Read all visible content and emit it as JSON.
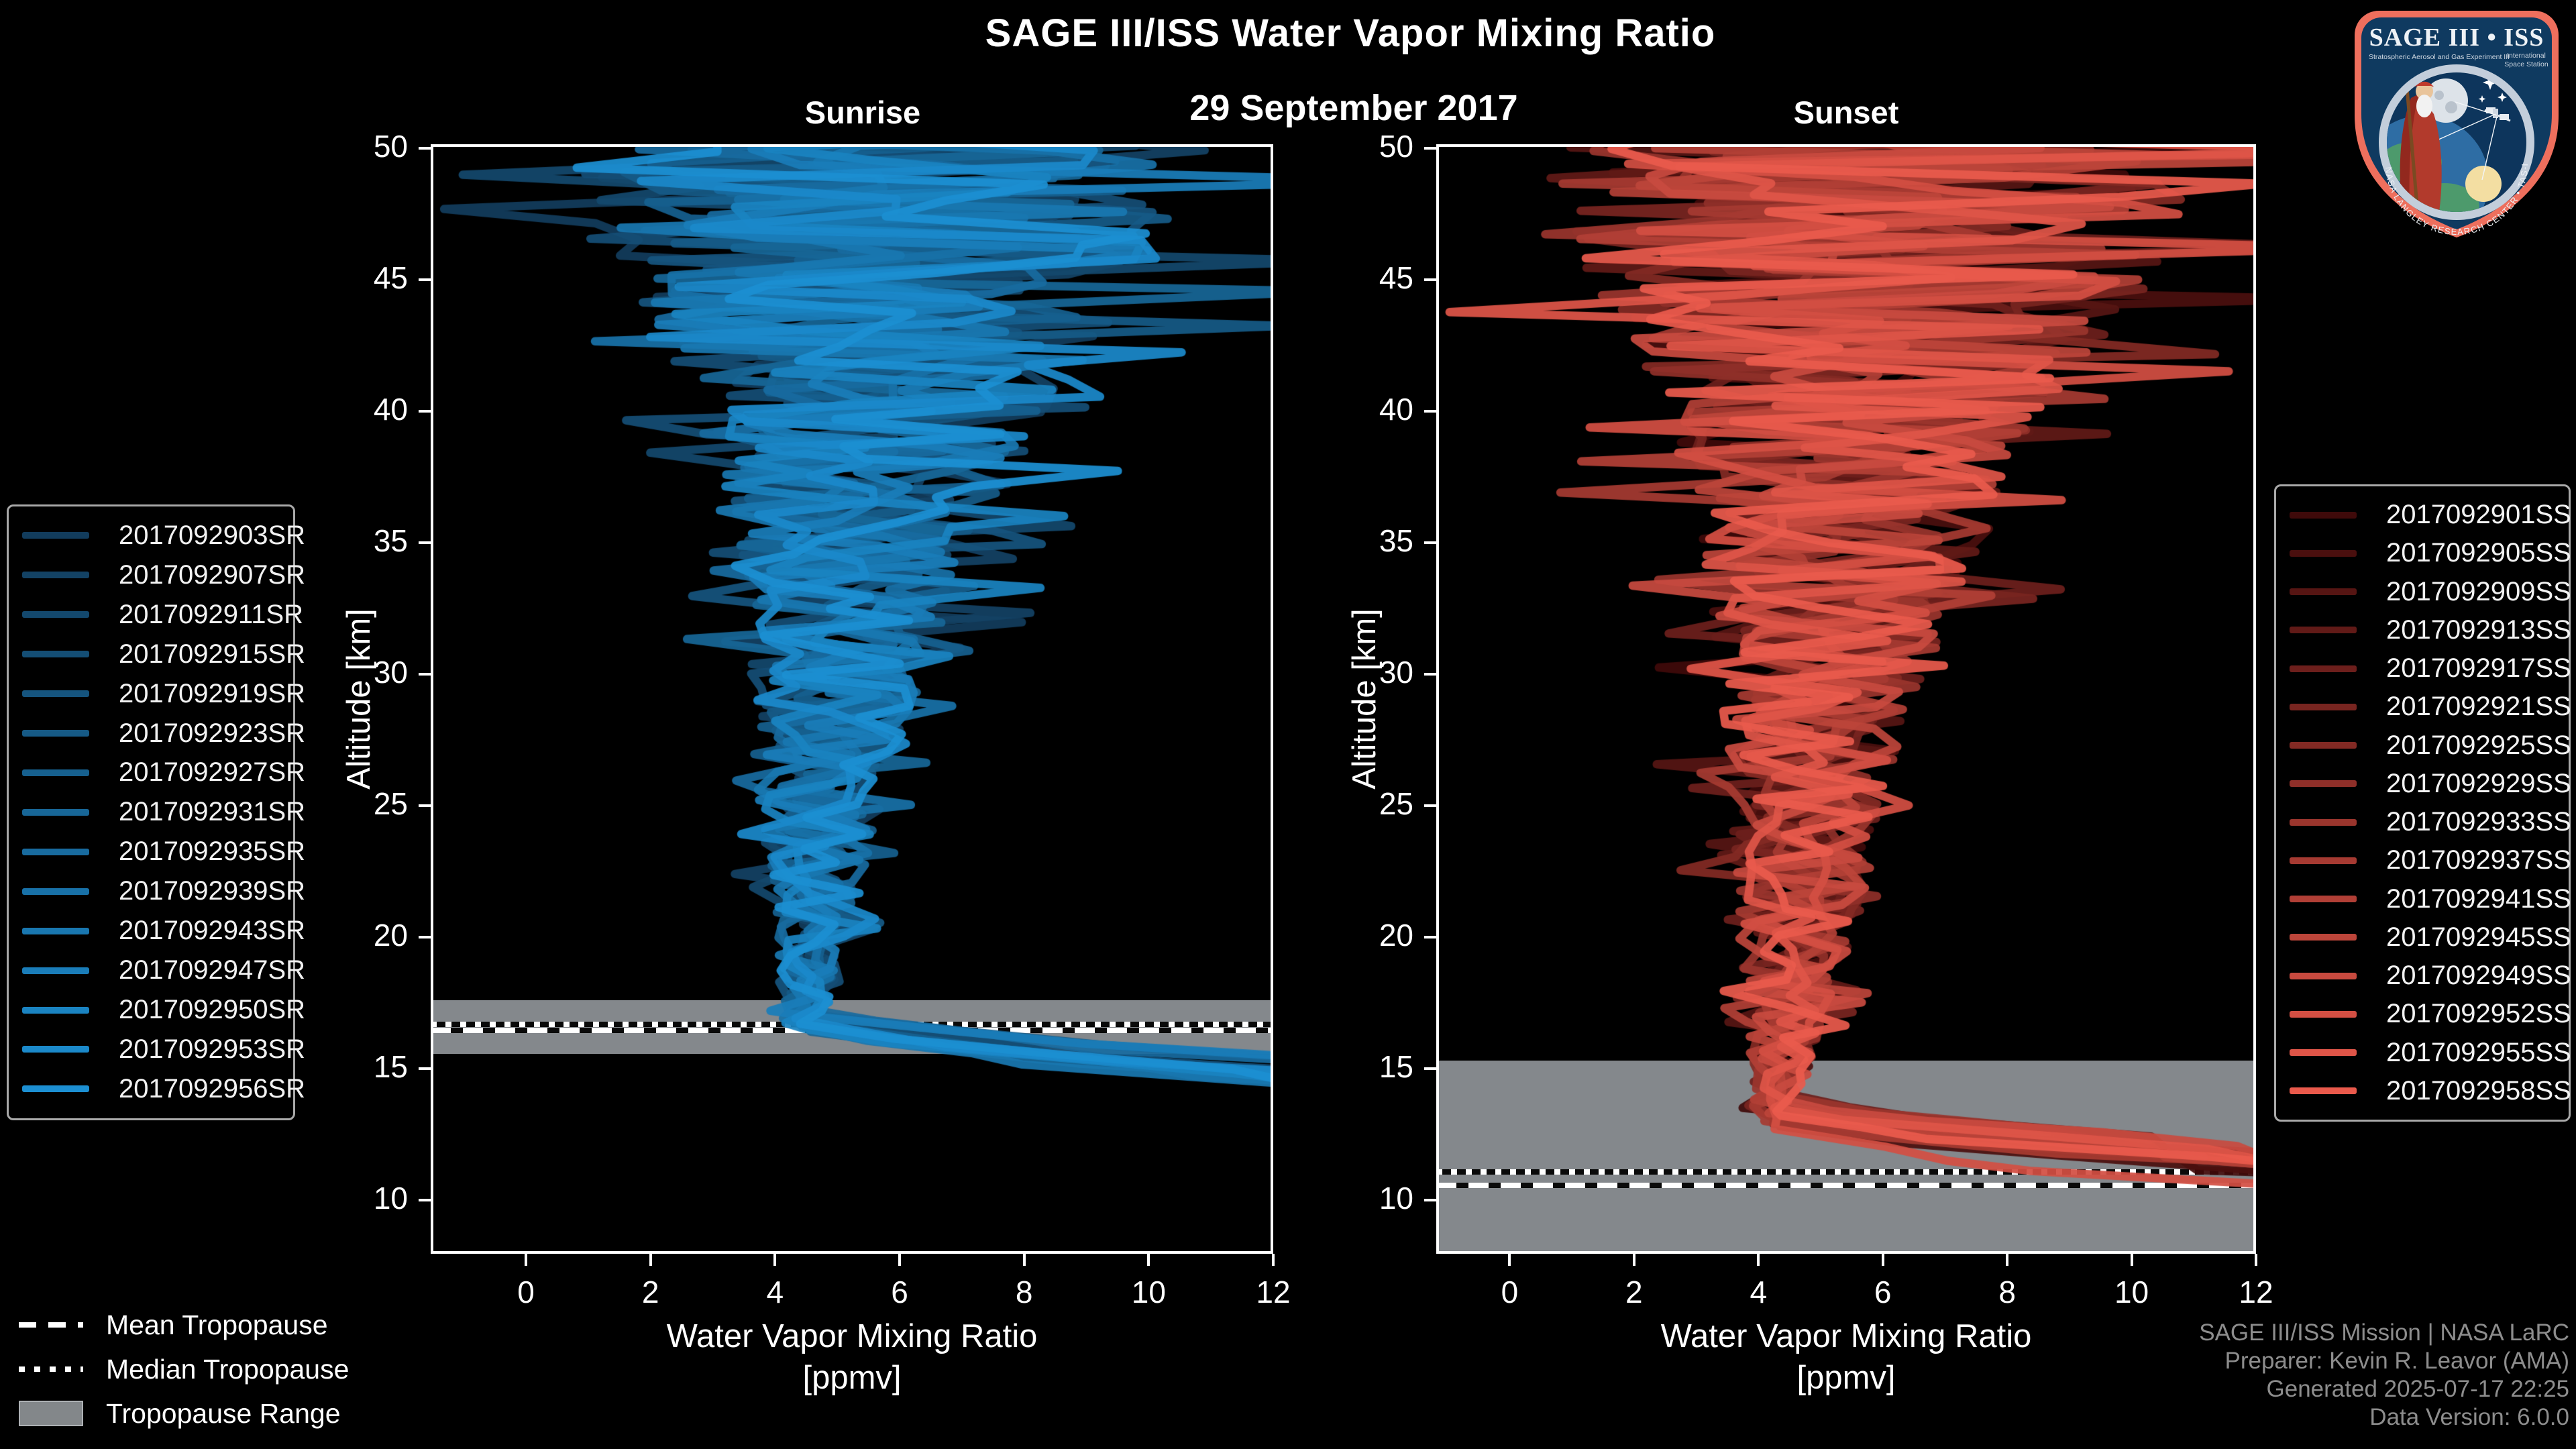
{
  "ui": {
    "title": "SAGE III/ISS Water Vapor Mixing Ratio",
    "date": "29 September 2017",
    "sunrise": "Sunrise",
    "sunset": "Sunset",
    "xlabel_line1": "Water Vapor Mixing Ratio",
    "xlabel_line2": "[ppmv]",
    "ylabel": "Altitude [km]",
    "colors": {
      "background": "#000000",
      "text": "#ffffff",
      "attribution_text": "#8d8d8d",
      "tropopause_band": "#84888c",
      "sunrise_dark": "#123c5c",
      "sunrise_bright": "#1c8fd2",
      "sunset_dark": "#3f0a0a",
      "sunset_bright": "#ea5a4c"
    },
    "tropo_legend": [
      {
        "style": "dashed",
        "label": "Mean Tropopause"
      },
      {
        "style": "dotted",
        "label": "Median Tropopause"
      },
      {
        "style": "range",
        "label": "Tropopause Range"
      }
    ],
    "attribution": [
      "SAGE III/ISS Mission | NASA LaRC",
      "Preparer: Kevin R. Leavor (AMA)",
      "Generated 2025-07-17 22:25",
      "Data Version: 6.0.0"
    ],
    "logo": {
      "title": "SAGE III • ISS",
      "sub1": "Stratospheric Aerosol and Gas Experiment III",
      "iss1": "International",
      "iss2": "Space Station",
      "ring": "BALL • NASA LANGLEY RESEARCH CENTER • TAS-I • ESA"
    }
  },
  "chart_data": [
    {
      "type": "line",
      "title": "Sunrise",
      "xlabel": "Water Vapor Mixing Ratio [ppmv]",
      "ylabel": "Altitude [km]",
      "xlim": [
        -1.53,
        12.0
      ],
      "ylim": [
        7.95,
        50.15
      ],
      "xticks": [
        0,
        2,
        4,
        6,
        8,
        10,
        12
      ],
      "yticks": [
        10,
        15,
        20,
        25,
        30,
        35,
        40,
        45,
        50
      ],
      "grid": false,
      "legend_position": "outside-left",
      "line_color_range": [
        "#123c5c",
        "#1c8fd2"
      ],
      "mean_profile": {
        "altitude_km": [
          16.5,
          18,
          20,
          25,
          30,
          35,
          40,
          45,
          50
        ],
        "ppmv": [
          4.45,
          4.5,
          4.6,
          4.75,
          4.95,
          5.2,
          5.6,
          5.75,
          5.6
        ]
      },
      "noise_amplitude_ppmv": {
        "altitude_km": [
          16,
          18,
          20,
          25,
          30,
          35,
          40,
          45,
          50
        ],
        "amp": [
          0.3,
          0.4,
          0.55,
          0.95,
          1.35,
          1.9,
          2.7,
          4.2,
          5.2
        ]
      },
      "tropopause": {
        "mean_km": 16.45,
        "median_km": 16.68,
        "range_km": [
          15.55,
          17.6
        ]
      },
      "series": [
        {
          "name": "2017092903SR",
          "color": "#123c5c",
          "seed": 101,
          "knee_km": 17.0,
          "bottom_km": 11.4,
          "rise": 2.6
        },
        {
          "name": "2017092907SR",
          "color": "#134264",
          "seed": 102,
          "knee_km": 16.6,
          "bottom_km": 14.6,
          "rise": 3.4
        },
        {
          "name": "2017092911SR",
          "color": "#13486d",
          "seed": 103,
          "knee_km": 17.2,
          "bottom_km": 13.1,
          "rise": 2.2
        },
        {
          "name": "2017092915SR",
          "color": "#144e75",
          "seed": 104,
          "knee_km": 16.8,
          "bottom_km": 14.2,
          "rise": 3.8
        },
        {
          "name": "2017092919SR",
          "color": "#15547e",
          "seed": 105,
          "knee_km": 16.5,
          "bottom_km": 13.6,
          "rise": 2.9
        },
        {
          "name": "2017092923SR",
          "color": "#165a86",
          "seed": 106,
          "knee_km": 17.1,
          "bottom_km": 14.9,
          "rise": 4.2
        },
        {
          "name": "2017092927SR",
          "color": "#16608f",
          "seed": 107,
          "knee_km": 16.9,
          "bottom_km": 12.8,
          "rise": 2.4
        },
        {
          "name": "2017092931SR",
          "color": "#176697",
          "seed": 108,
          "knee_km": 16.4,
          "bottom_km": 14.4,
          "rise": 3.6
        },
        {
          "name": "2017092935SR",
          "color": "#186b9f",
          "seed": 109,
          "knee_km": 17.3,
          "bottom_km": 13.0,
          "rise": 2.8
        },
        {
          "name": "2017092939SR",
          "color": "#1871a8",
          "seed": 110,
          "knee_km": 16.7,
          "bottom_km": 14.0,
          "rise": 3.1
        },
        {
          "name": "2017092943SR",
          "color": "#1977b0",
          "seed": 111,
          "knee_km": 16.6,
          "bottom_km": 12.6,
          "rise": 2.3
        },
        {
          "name": "2017092947SR",
          "color": "#1a7db9",
          "seed": 112,
          "knee_km": 17.0,
          "bottom_km": 13.9,
          "rise": 3.9
        },
        {
          "name": "2017092950SR",
          "color": "#1a83c1",
          "seed": 113,
          "knee_km": 16.5,
          "bottom_km": 14.7,
          "rise": 3.3
        },
        {
          "name": "2017092953SR",
          "color": "#1b89ca",
          "seed": 114,
          "knee_km": 16.9,
          "bottom_km": 12.9,
          "rise": 2.7
        },
        {
          "name": "2017092956SR",
          "color": "#1c8fd2",
          "seed": 115,
          "knee_km": 16.7,
          "bottom_km": 13.5,
          "rise": 3.0
        }
      ]
    },
    {
      "type": "line",
      "title": "Sunset",
      "xlabel": "Water Vapor Mixing Ratio [ppmv]",
      "ylabel": "Altitude [km]",
      "xlim": [
        -1.18,
        12.0
      ],
      "ylim": [
        7.95,
        50.15
      ],
      "xticks": [
        0,
        2,
        4,
        6,
        8,
        10,
        12
      ],
      "yticks": [
        10,
        15,
        20,
        25,
        30,
        35,
        40,
        45,
        50
      ],
      "grid": false,
      "legend_position": "outside-right",
      "line_color_range": [
        "#3f0a0a",
        "#ea5a4c"
      ],
      "mean_profile": {
        "altitude_km": [
          12.5,
          14,
          16,
          20,
          25,
          30,
          35,
          40,
          45,
          50
        ],
        "ppmv": [
          4.2,
          4.3,
          4.4,
          4.6,
          4.8,
          5.0,
          5.3,
          5.6,
          5.8,
          5.8
        ]
      },
      "noise_amplitude_ppmv": {
        "altitude_km": [
          13,
          15,
          18,
          20,
          25,
          30,
          35,
          40,
          45,
          50
        ],
        "amp": [
          0.3,
          0.45,
          0.7,
          0.9,
          1.2,
          1.6,
          2.2,
          2.9,
          4.3,
          5.2
        ]
      },
      "tropopause": {
        "mean_km": 10.56,
        "median_km": 11.05,
        "range_km": [
          7.95,
          15.3
        ]
      },
      "series": [
        {
          "name": "2017092901SS",
          "color": "#3f0a0a",
          "seed": 201,
          "knee_km": 13.4,
          "bottom_km": 10.2,
          "rise": 2.8
        },
        {
          "name": "2017092905SS",
          "color": "#4a0f0e",
          "seed": 202,
          "knee_km": 12.8,
          "bottom_km": 11.4,
          "rise": 3.6
        },
        {
          "name": "2017092909SS",
          "color": "#561513",
          "seed": 203,
          "knee_km": 13.8,
          "bottom_km": 10.8,
          "rise": 2.2
        },
        {
          "name": "2017092913SS",
          "color": "#611a17",
          "seed": 204,
          "knee_km": 13.1,
          "bottom_km": 11.8,
          "rise": 4.0
        },
        {
          "name": "2017092917SS",
          "color": "#6d1f1c",
          "seed": 205,
          "knee_km": 14.1,
          "bottom_km": 10.5,
          "rise": 2.5
        },
        {
          "name": "2017092921SS",
          "color": "#782520",
          "seed": 206,
          "knee_km": 12.9,
          "bottom_km": 12.0,
          "rise": 4.4
        },
        {
          "name": "2017092925SS",
          "color": "#832a24",
          "seed": 207,
          "knee_km": 13.6,
          "bottom_km": 11.0,
          "rise": 2.9
        },
        {
          "name": "2017092929SS",
          "color": "#8f2f29",
          "seed": 208,
          "knee_km": 13.2,
          "bottom_km": 11.3,
          "rise": 3.2
        },
        {
          "name": "2017092933SS",
          "color": "#9a352d",
          "seed": 209,
          "knee_km": 14.0,
          "bottom_km": 10.6,
          "rise": 2.4
        },
        {
          "name": "2017092937SS",
          "color": "#a63a32",
          "seed": 210,
          "knee_km": 13.0,
          "bottom_km": 11.6,
          "rise": 3.7
        },
        {
          "name": "2017092941SS",
          "color": "#b13f36",
          "seed": 211,
          "knee_km": 13.7,
          "bottom_km": 10.9,
          "rise": 2.7
        },
        {
          "name": "2017092945SS",
          "color": "#bc453a",
          "seed": 212,
          "knee_km": 13.3,
          "bottom_km": 12.2,
          "rise": 4.1
        },
        {
          "name": "2017092949SS",
          "color": "#c84a3f",
          "seed": 213,
          "knee_km": 13.9,
          "bottom_km": 11.2,
          "rise": 3.0
        },
        {
          "name": "2017092952SS",
          "color": "#d34f43",
          "seed": 214,
          "knee_km": 12.7,
          "bottom_km": 10.4,
          "rise": 2.6
        },
        {
          "name": "2017092955SS",
          "color": "#df5548",
          "seed": 215,
          "knee_km": 13.5,
          "bottom_km": 11.7,
          "rise": 3.5
        },
        {
          "name": "2017092958SS",
          "color": "#ea5a4c",
          "seed": 216,
          "knee_km": 13.2,
          "bottom_km": 10.7,
          "rise": 3.1
        }
      ]
    }
  ]
}
